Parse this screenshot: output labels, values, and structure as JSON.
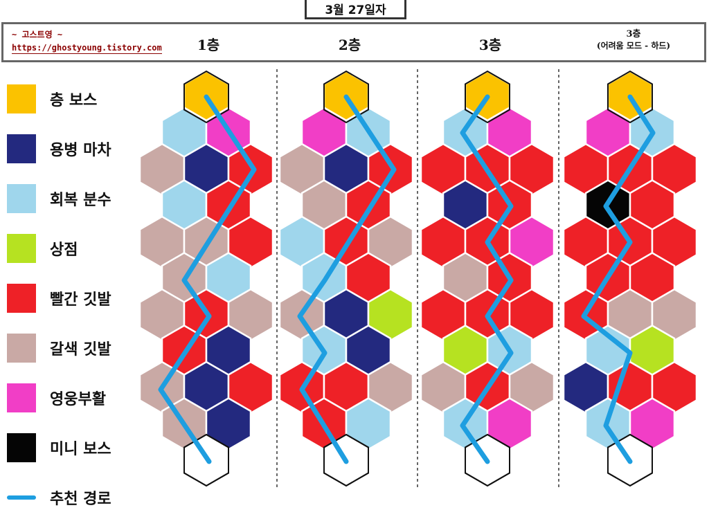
{
  "date": "3월 27일자",
  "brand": {
    "name": "~ 고스트영 ~",
    "url": "https://ghostyoung.tistory.com"
  },
  "floors": [
    {
      "title": "1층",
      "subtitle": ""
    },
    {
      "title": "2층",
      "subtitle": ""
    },
    {
      "title": "3층",
      "subtitle": ""
    },
    {
      "title": "3층",
      "subtitle": "(어려움 모드 - 하드)"
    }
  ],
  "colors": {
    "boss": "#fbc200",
    "mercenary": "#23297f",
    "fountain": "#9fd6ec",
    "shop": "#b6e221",
    "red_flag": "#ee2127",
    "brown_flag": "#c9a9a5",
    "revive": "#f13ec6",
    "miniboss": "#050505",
    "empty": "#ffffff",
    "route": "#1e9ee0"
  },
  "legend": [
    {
      "key": "boss",
      "label": "층 보스",
      "icon": "yellow-square"
    },
    {
      "key": "mercenary",
      "label": "용병 마차",
      "icon": "navy-square"
    },
    {
      "key": "fountain",
      "label": "회복 분수",
      "icon": "lightblue-square"
    },
    {
      "key": "shop",
      "label": "상점",
      "icon": "green-square"
    },
    {
      "key": "red_flag",
      "label": "빨간 깃발",
      "icon": "red-square"
    },
    {
      "key": "brown_flag",
      "label": "갈색 깃발",
      "icon": "brown-square"
    },
    {
      "key": "revive",
      "label": "영웅부활",
      "icon": "pink-square"
    },
    {
      "key": "miniboss",
      "label": "미니 보스",
      "icon": "black-square"
    },
    {
      "key": "route",
      "label": "추천 경로",
      "icon": "blue-line"
    }
  ],
  "maps": [
    [
      [
        "boss"
      ],
      [
        "fountain",
        "revive"
      ],
      [
        "brown_flag",
        "mercenary",
        "red_flag"
      ],
      [
        "fountain",
        "red_flag"
      ],
      [
        "brown_flag",
        "brown_flag",
        "red_flag"
      ],
      [
        "brown_flag",
        "fountain"
      ],
      [
        "brown_flag",
        "red_flag",
        "brown_flag"
      ],
      [
        "red_flag",
        "mercenary"
      ],
      [
        "brown_flag",
        "mercenary",
        "red_flag"
      ],
      [
        "brown_flag",
        "mercenary"
      ],
      [
        "empty"
      ]
    ],
    [
      [
        "boss"
      ],
      [
        "revive",
        "fountain"
      ],
      [
        "brown_flag",
        "mercenary",
        "red_flag"
      ],
      [
        "brown_flag",
        "red_flag"
      ],
      [
        "fountain",
        "red_flag",
        "brown_flag"
      ],
      [
        "fountain",
        "red_flag"
      ],
      [
        "brown_flag",
        "mercenary",
        "shop"
      ],
      [
        "fountain",
        "mercenary"
      ],
      [
        "red_flag",
        "red_flag",
        "brown_flag"
      ],
      [
        "red_flag",
        "fountain"
      ],
      [
        "empty"
      ]
    ],
    [
      [
        "boss"
      ],
      [
        "fountain",
        "revive"
      ],
      [
        "red_flag",
        "red_flag",
        "red_flag"
      ],
      [
        "mercenary",
        "red_flag"
      ],
      [
        "red_flag",
        "red_flag",
        "revive"
      ],
      [
        "brown_flag",
        "red_flag"
      ],
      [
        "red_flag",
        "red_flag",
        "red_flag"
      ],
      [
        "shop",
        "fountain"
      ],
      [
        "brown_flag",
        "red_flag",
        "brown_flag"
      ],
      [
        "fountain",
        "revive"
      ],
      [
        "empty"
      ]
    ],
    [
      [
        "boss"
      ],
      [
        "revive",
        "fountain"
      ],
      [
        "red_flag",
        "red_flag",
        "red_flag"
      ],
      [
        "miniboss",
        "red_flag"
      ],
      [
        "red_flag",
        "red_flag",
        "red_flag"
      ],
      [
        "red_flag",
        "red_flag"
      ],
      [
        "red_flag",
        "brown_flag",
        "brown_flag"
      ],
      [
        "fountain",
        "shop"
      ],
      [
        "mercenary",
        "red_flag",
        "red_flag"
      ],
      [
        "fountain",
        "revive"
      ],
      [
        "empty"
      ]
    ]
  ]
}
